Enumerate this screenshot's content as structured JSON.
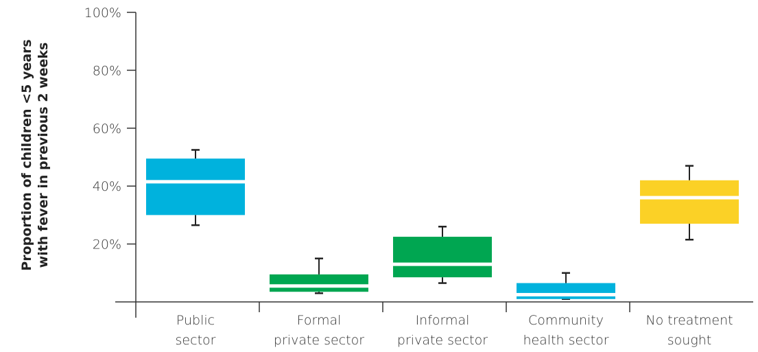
{
  "chart_data": {
    "type": "box",
    "ylabel_lines": [
      "Proportion of children <5 years",
      "with fever in previous 2 weeks"
    ],
    "ylim": [
      0,
      100
    ],
    "yticks": [
      "100%",
      "80%",
      "60%",
      "40%",
      "20%"
    ],
    "ytick_values": [
      100,
      80,
      60,
      40,
      20
    ],
    "grid": false,
    "categories": [
      {
        "lines": [
          "Public",
          "sector"
        ]
      },
      {
        "lines": [
          "Formal",
          "private sector"
        ]
      },
      {
        "lines": [
          "Informal",
          "private sector"
        ]
      },
      {
        "lines": [
          "Community",
          "health sector"
        ]
      },
      {
        "lines": [
          "No treatment",
          "sought"
        ]
      }
    ],
    "boxes": [
      {
        "whisker_low": 26.5,
        "q1": 30,
        "median": 41.5,
        "q3": 49.5,
        "whisker_high": 52.5,
        "color": "#00B2DD"
      },
      {
        "whisker_low": 3,
        "q1": 3.5,
        "median": 5.5,
        "q3": 9.5,
        "whisker_high": 15,
        "color": "#00A651"
      },
      {
        "whisker_low": 6.5,
        "q1": 8.5,
        "median": 13,
        "q3": 22.5,
        "whisker_high": 26,
        "color": "#00A651"
      },
      {
        "whisker_low": 1,
        "q1": 1,
        "median": 2.5,
        "q3": 6.5,
        "whisker_high": 10,
        "color": "#00B2DD"
      },
      {
        "whisker_low": 21.5,
        "q1": 27,
        "median": 36,
        "q3": 42,
        "whisker_high": 47,
        "color": "#FBD126"
      }
    ]
  }
}
